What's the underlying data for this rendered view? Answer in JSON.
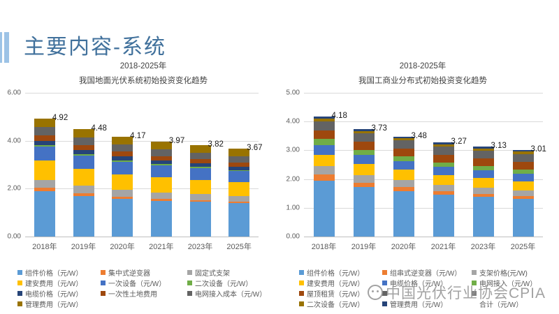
{
  "slide": {
    "title": "主要内容-系统",
    "watermark": "中国光伏行业协会CPIA"
  },
  "theme": {
    "accent": "#9DC3E6",
    "title_color": "#41719C",
    "grid_color": "#D9D9D9",
    "axis_color": "#BFBFBF",
    "muted_text": "#595959",
    "watermark_color": "#929292"
  },
  "chart_data": [
    {
      "type": "bar",
      "stacked": true,
      "title_line1": "2018-2025年",
      "title_line2": "我国地面光伏系统初始投资变化趋势",
      "categories": [
        "2018年",
        "2019年",
        "2020年",
        "2021年",
        "2023年",
        "2025年"
      ],
      "totals": [
        4.92,
        4.48,
        4.17,
        3.97,
        3.82,
        3.67
      ],
      "ylim": [
        0,
        6
      ],
      "yticks": [
        "6.00",
        "4.00",
        "2.00",
        "0.00"
      ],
      "grid": true,
      "legend_position": "bottom",
      "series": [
        {
          "name": "组件价格（元/W）",
          "color": "#5B9BD5",
          "values": [
            1.9,
            1.7,
            1.56,
            1.5,
            1.45,
            1.4
          ]
        },
        {
          "name": "集中式逆变器",
          "color": "#ED7D31",
          "values": [
            0.14,
            0.12,
            0.1,
            0.08,
            0.07,
            0.06
          ]
        },
        {
          "name": "固定式支架",
          "color": "#A5A5A5",
          "values": [
            0.33,
            0.3,
            0.28,
            0.26,
            0.25,
            0.24
          ]
        },
        {
          "name": "建安费用（元/W）",
          "color": "#FFC000",
          "values": [
            0.8,
            0.7,
            0.66,
            0.63,
            0.6,
            0.57
          ]
        },
        {
          "name": "一次设备（元/W）",
          "color": "#4472C4",
          "values": [
            0.58,
            0.55,
            0.52,
            0.5,
            0.48,
            0.46
          ]
        },
        {
          "name": "二次设备（元/W）",
          "color": "#70AD47",
          "values": [
            0.07,
            0.06,
            0.06,
            0.05,
            0.05,
            0.05
          ]
        },
        {
          "name": "电缆价格（元/W）",
          "color": "#264478",
          "values": [
            0.18,
            0.18,
            0.17,
            0.16,
            0.15,
            0.14
          ]
        },
        {
          "name": "一次性土地费用",
          "color": "#9E480E",
          "values": [
            0.22,
            0.2,
            0.19,
            0.18,
            0.17,
            0.16
          ]
        },
        {
          "name": "电网接入成本（元/W）",
          "color": "#636363",
          "values": [
            0.35,
            0.32,
            0.3,
            0.28,
            0.27,
            0.26
          ]
        },
        {
          "name": "管理费用（元/W）",
          "color": "#997300",
          "values": [
            0.35,
            0.35,
            0.33,
            0.33,
            0.33,
            0.33
          ]
        }
      ],
      "legend": [
        {
          "label": "组件价格（元/W）",
          "color": "#5B9BD5"
        },
        {
          "label": "集中式逆变器",
          "color": "#ED7D31"
        },
        {
          "label": "固定式支架",
          "color": "#A5A5A5"
        },
        {
          "label": "建安费用（元/W）",
          "color": "#FFC000"
        },
        {
          "label": "一次设备（元/W）",
          "color": "#4472C4"
        },
        {
          "label": "二次设备（元/W）",
          "color": "#70AD47"
        },
        {
          "label": "电缆价格（元/W）",
          "color": "#264478"
        },
        {
          "label": "一次性土地费用",
          "color": "#9E480E"
        },
        {
          "label": "电网接入成本（元/W）",
          "color": "#636363"
        },
        {
          "label": "管理费用（元/W）",
          "color": "#997300"
        }
      ]
    },
    {
      "type": "bar",
      "stacked": true,
      "title_line1": "2018-2025年",
      "title_line2": "我国工商业分布式初始投资变化趋势",
      "categories": [
        "2018年",
        "2019年",
        "2020年",
        "2021年",
        "2023年",
        "2025年"
      ],
      "totals": [
        4.18,
        3.73,
        3.48,
        3.27,
        3.13,
        3.01
      ],
      "ylim": [
        0,
        5
      ],
      "yticks": [
        "5.00",
        "4.00",
        "3.00",
        "2.00",
        "1.00",
        "0.00"
      ],
      "grid": true,
      "legend_position": "bottom",
      "series": [
        {
          "name": "组件价格（元/W）",
          "color": "#5B9BD5",
          "values": [
            1.95,
            1.72,
            1.58,
            1.46,
            1.38,
            1.3
          ]
        },
        {
          "name": "组串式逆变器（元/W）",
          "color": "#ED7D31",
          "values": [
            0.2,
            0.16,
            0.14,
            0.12,
            0.11,
            0.1
          ]
        },
        {
          "name": "支架价格(元/W)",
          "color": "#A5A5A5",
          "values": [
            0.3,
            0.26,
            0.24,
            0.22,
            0.21,
            0.2
          ]
        },
        {
          "name": "建安费用（元/W）",
          "color": "#FFC000",
          "values": [
            0.38,
            0.38,
            0.36,
            0.34,
            0.33,
            0.32
          ]
        },
        {
          "name": "电缆价格（元/W）",
          "color": "#4472C4",
          "values": [
            0.35,
            0.32,
            0.3,
            0.28,
            0.27,
            0.26
          ]
        },
        {
          "name": "电网接入（元/W）",
          "color": "#70AD47",
          "values": [
            0.22,
            0.18,
            0.17,
            0.16,
            0.15,
            0.15
          ]
        },
        {
          "name": "屋顶租赁（元/W）",
          "color": "#9E480E",
          "values": [
            0.3,
            0.28,
            0.27,
            0.26,
            0.26,
            0.26
          ]
        },
        {
          "name": "",
          "color": "#636363",
          "values": [
            0.3,
            0.29,
            0.28,
            0.29,
            0.28,
            0.28
          ],
          "legend_obscured": true
        },
        {
          "name": "二次设备（元/W）",
          "color": "#997300",
          "values": [
            0.1,
            0.08,
            0.08,
            0.08,
            0.08,
            0.08
          ]
        },
        {
          "name": "管理费用（元/W）",
          "color": "#264478",
          "values": [
            0.08,
            0.06,
            0.06,
            0.06,
            0.06,
            0.06
          ]
        }
      ],
      "legend": [
        {
          "label": "组件价格（元/W）",
          "color": "#5B9BD5"
        },
        {
          "label": "组串式逆变器（元/W）",
          "color": "#ED7D31"
        },
        {
          "label": "支架价格(元/W)",
          "color": "#A5A5A5"
        },
        {
          "label": "建安费用（元/W）",
          "color": "#FFC000"
        },
        {
          "label": "电缆价格（元/W）",
          "color": "#4472C4"
        },
        {
          "label": "电网接入（元/W）",
          "color": "#70AD47"
        },
        {
          "label": "屋顶租赁（元/W）",
          "color": "#9E480E"
        },
        {
          "label": "",
          "color": "#636363",
          "obscured": true
        },
        {
          "label": "",
          "color": "#808080",
          "obscured": true
        },
        {
          "label": "二次设备（元/W）",
          "color": "#997300"
        },
        {
          "label": "管理费用（元/W）",
          "color": "#264478"
        },
        {
          "label": "合计（元/W）",
          "color": null
        }
      ]
    }
  ]
}
